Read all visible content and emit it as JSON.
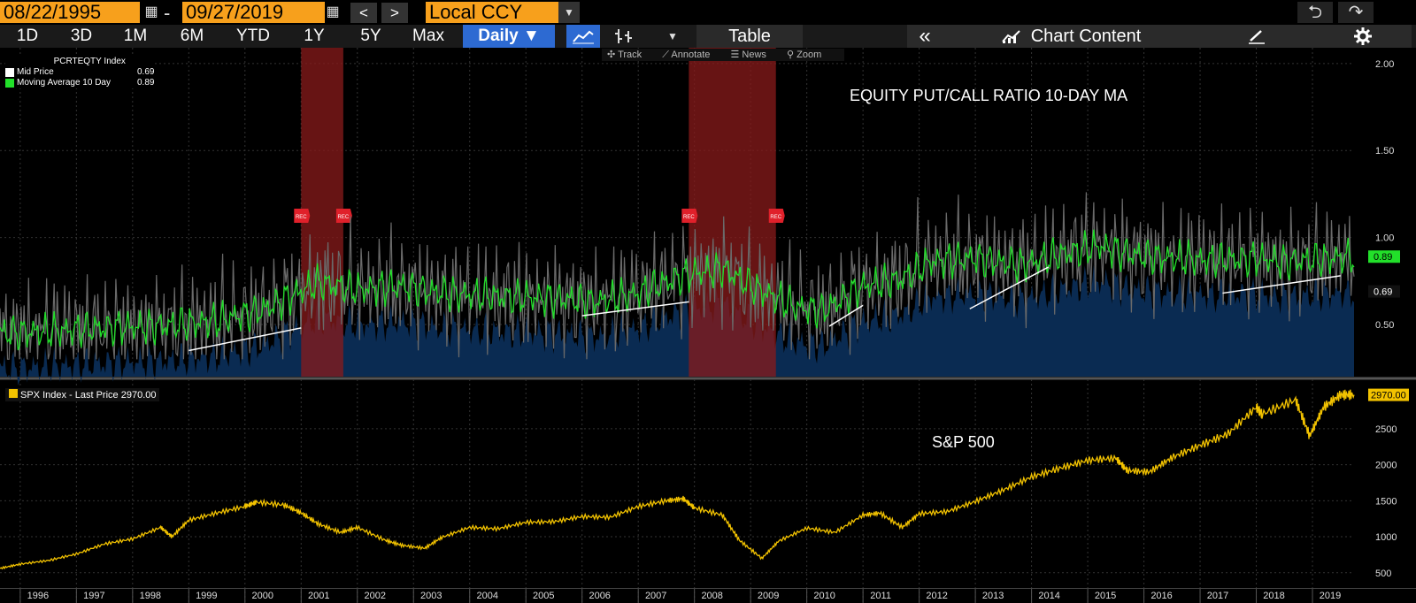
{
  "toolbar": {
    "start_date": "08/22/1995",
    "end_date": "09/27/2019",
    "dash": "-",
    "prev": "<",
    "next": ">",
    "currency": "Local CCY",
    "undo": "⮌",
    "redo": "↷"
  },
  "periods": [
    "1D",
    "3D",
    "1M",
    "6M",
    "YTD",
    "1Y",
    "5Y",
    "Max"
  ],
  "frequency": "Daily ▼",
  "table_label": "Table",
  "collapse_label": "«",
  "chart_content_label": "Chart Content",
  "tools": {
    "track": "Track",
    "annotate": "Annotate",
    "news": "News",
    "zoom": "Zoom"
  },
  "colors": {
    "accent_orange": "#f7a01c",
    "green": "#22e02a",
    "gold": "#f2c200",
    "fill": "#0a2b52",
    "recession": "#8a1b1b",
    "mid": "#6a6a6a"
  },
  "chart_data": [
    {
      "type": "line",
      "legend_title": "PCRTEQTY Index",
      "series": [
        {
          "name": "Mid Price",
          "last": "0.69"
        },
        {
          "name": "Moving Average 10 Day",
          "last": "0.89"
        }
      ],
      "annotation": "EQUITY PUT/CALL RATIO 10-DAY MA",
      "ylim": [
        0.2,
        2.05
      ],
      "y_ticks": [
        "2.00",
        "1.50",
        "1.00",
        "0.50"
      ],
      "last_labels": [
        "0.89",
        "0.69"
      ],
      "x_years": [
        1996,
        1997,
        1998,
        1999,
        2000,
        2001,
        2002,
        2003,
        2004,
        2005,
        2006,
        2007,
        2008,
        2009,
        2010,
        2011,
        2012,
        2013,
        2014,
        2015,
        2016,
        2017,
        2018,
        2019
      ],
      "ma_anchors": [
        [
          1995.64,
          0.45
        ],
        [
          1996.5,
          0.46
        ],
        [
          1997.5,
          0.48
        ],
        [
          1998.5,
          0.49
        ],
        [
          1999.5,
          0.52
        ],
        [
          2000.3,
          0.58
        ],
        [
          2000.8,
          0.66
        ],
        [
          2001.3,
          0.74
        ],
        [
          2002,
          0.7
        ],
        [
          2002.8,
          0.72
        ],
        [
          2003.5,
          0.68
        ],
        [
          2004.5,
          0.66
        ],
        [
          2005.5,
          0.65
        ],
        [
          2006.3,
          0.63
        ],
        [
          2007,
          0.68
        ],
        [
          2007.8,
          0.78
        ],
        [
          2008.5,
          0.82
        ],
        [
          2009,
          0.72
        ],
        [
          2009.8,
          0.6
        ],
        [
          2010.3,
          0.58
        ],
        [
          2011,
          0.72
        ],
        [
          2011.7,
          0.76
        ],
        [
          2012.2,
          0.86
        ],
        [
          2013,
          0.88
        ],
        [
          2013.8,
          0.84
        ],
        [
          2014.5,
          0.9
        ],
        [
          2015.2,
          0.95
        ],
        [
          2015.8,
          0.9
        ],
        [
          2016.5,
          0.88
        ],
        [
          2017.3,
          0.87
        ],
        [
          2018,
          0.88
        ],
        [
          2018.5,
          0.86
        ],
        [
          2019,
          0.87
        ],
        [
          2019.74,
          0.89
        ]
      ],
      "recessions": [
        [
          2001.0,
          2001.75
        ],
        [
          2007.9,
          2009.45
        ]
      ],
      "rec_label": "REC",
      "trendlines": [
        [
          1999.0,
          0.35,
          2001.0,
          0.48
        ],
        [
          2006.0,
          0.55,
          2007.9,
          0.63
        ],
        [
          2010.4,
          0.49,
          2011.0,
          0.61
        ],
        [
          2012.9,
          0.59,
          2014.3,
          0.83
        ],
        [
          2017.4,
          0.68,
          2019.5,
          0.78
        ]
      ]
    },
    {
      "type": "line",
      "legend": "SPX Index - Last Price 2970.00",
      "series": [
        {
          "name": "SPX Index - Last Price",
          "last": "2970.00"
        }
      ],
      "annotation": "S&P 500",
      "ylim": [
        350,
        3100
      ],
      "y_ticks": [
        "2500",
        "2000",
        "1500",
        "1000",
        "500"
      ],
      "last_label": "2970.00",
      "x_years": [
        1996,
        1997,
        1998,
        1999,
        2000,
        2001,
        2002,
        2003,
        2004,
        2005,
        2006,
        2007,
        2008,
        2009,
        2010,
        2011,
        2012,
        2013,
        2014,
        2015,
        2016,
        2017,
        2018,
        2019
      ],
      "x": [
        1995.64,
        1996.0,
        1996.5,
        1997.0,
        1997.5,
        1998.0,
        1998.5,
        1998.7,
        1999.0,
        1999.5,
        2000.0,
        2000.2,
        2000.7,
        2001.0,
        2001.3,
        2001.7,
        2002.0,
        2002.5,
        2002.8,
        2003.2,
        2003.5,
        2004.0,
        2004.5,
        2005.0,
        2005.5,
        2006.0,
        2006.5,
        2007.0,
        2007.5,
        2007.8,
        2008.0,
        2008.5,
        2008.8,
        2009.2,
        2009.5,
        2010.0,
        2010.5,
        2011.0,
        2011.3,
        2011.7,
        2012.0,
        2012.5,
        2013.0,
        2013.5,
        2014.0,
        2014.5,
        2015.0,
        2015.5,
        2015.7,
        2016.1,
        2016.5,
        2017.0,
        2017.5,
        2018.0,
        2018.1,
        2018.7,
        2018.95,
        2019.2,
        2019.5,
        2019.74
      ],
      "values": [
        560,
        620,
        670,
        760,
        900,
        970,
        1130,
        1000,
        1230,
        1330,
        1420,
        1480,
        1440,
        1330,
        1180,
        1060,
        1130,
        950,
        880,
        840,
        990,
        1130,
        1110,
        1200,
        1210,
        1280,
        1270,
        1420,
        1500,
        1530,
        1400,
        1300,
        950,
        700,
        940,
        1120,
        1060,
        1300,
        1330,
        1130,
        1320,
        1350,
        1490,
        1650,
        1830,
        1950,
        2060,
        2090,
        1920,
        1900,
        2100,
        2270,
        2430,
        2800,
        2700,
        2900,
        2400,
        2800,
        2970,
        2970
      ]
    }
  ]
}
